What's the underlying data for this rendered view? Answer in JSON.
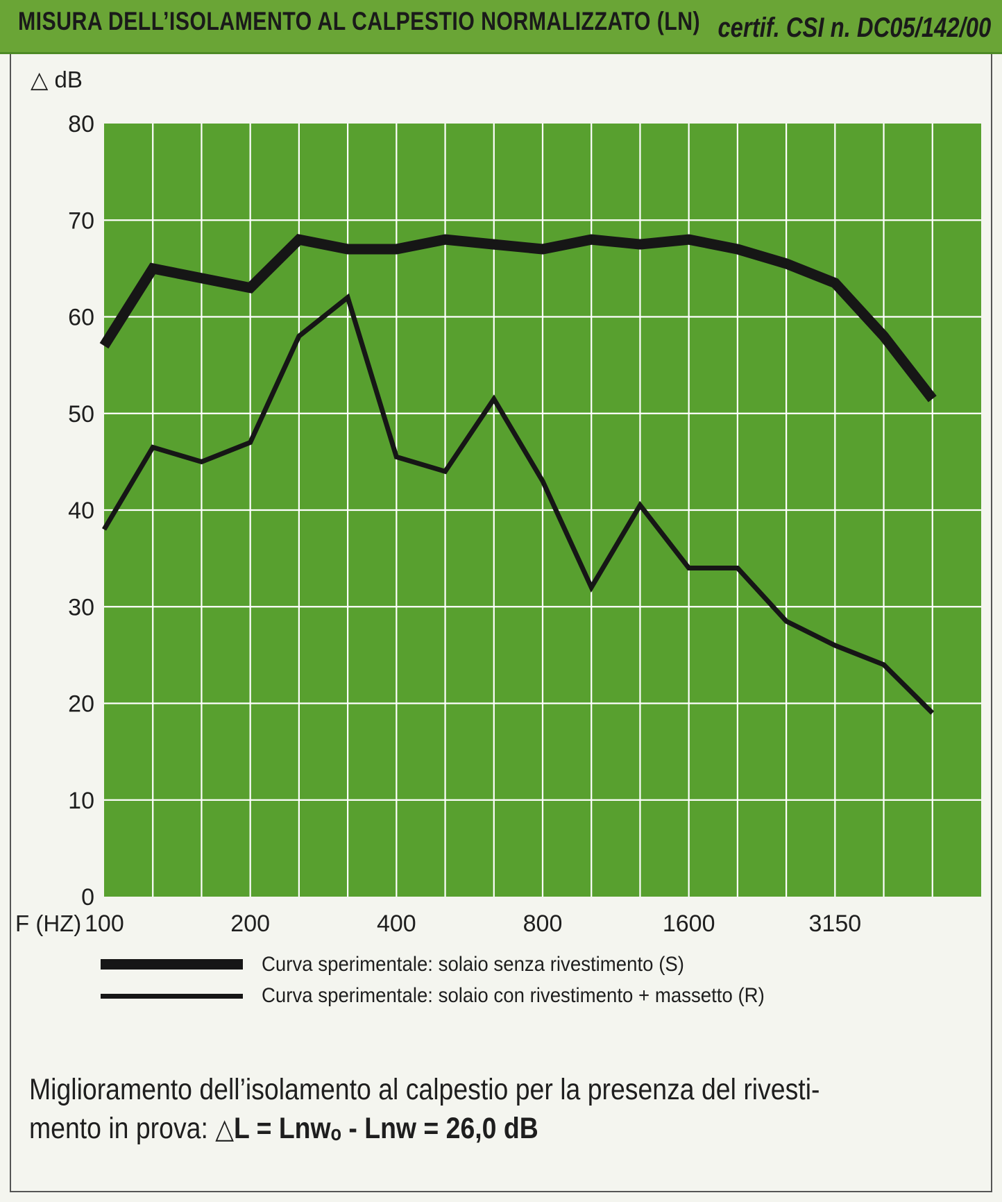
{
  "header": {
    "title": "MISURA DELL’ISOLAMENTO AL CALPESTIO NORMALIZZATO (LN)",
    "certificate": "certif. CSI n. DC05/142/00"
  },
  "chart_data": {
    "type": "line",
    "ylabel": "△ dB",
    "xlabel": "F (HZ)",
    "ylim": [
      0,
      80
    ],
    "yticks": [
      "0",
      "10",
      "20",
      "30",
      "40",
      "50",
      "60",
      "70",
      "80"
    ],
    "x_positions": [
      "100",
      "125",
      "160",
      "200",
      "250",
      "315",
      "400",
      "500",
      "630",
      "800",
      "1000",
      "1250",
      "1600",
      "2000",
      "2500",
      "3150",
      "4000",
      "5000"
    ],
    "x_tick_labels": [
      "100",
      "200",
      "400",
      "800",
      "1600",
      "3150"
    ],
    "grid": true,
    "series": [
      {
        "name": "Curva sperimentale: solaio senza rivestimento (S)",
        "values": [
          57,
          65,
          64,
          63,
          68,
          67,
          67,
          68,
          67.5,
          67,
          68,
          67.5,
          68,
          67,
          65.5,
          63.5,
          58,
          51.5
        ]
      },
      {
        "name": "Curva sperimentale: solaio con rivestimento + massetto (R)",
        "values": [
          38,
          46.5,
          45,
          47,
          58,
          62,
          45.5,
          44,
          51.5,
          43,
          32,
          40.5,
          34,
          34,
          28.5,
          26,
          24,
          19
        ]
      }
    ]
  },
  "footer": {
    "line1": "Miglioramento dell’isolamento al calpestio per la presenza del rivesti-",
    "line2_prefix": "mento in prova: ",
    "delta_symbol": "△",
    "formula": "L = Lnwₒ - Lnw = 26,0 dB"
  },
  "colors": {
    "header_bg": "#6aa536",
    "plot_bg": "#58a02f",
    "grid": "#ffffff",
    "curve": "#161616"
  }
}
